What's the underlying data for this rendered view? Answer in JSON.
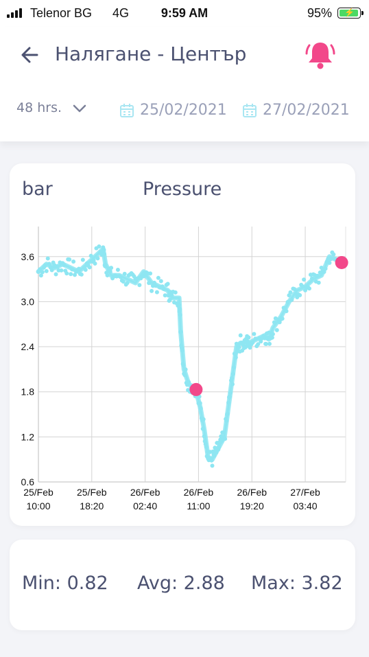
{
  "status": {
    "carrier": "Telenor BG",
    "network": "4G",
    "time": "9:59 AM",
    "battery": "95%"
  },
  "header": {
    "title": "Налягане - Център",
    "range_label": "48 hrs.",
    "date_from": "25/02/2021",
    "date_to": "27/02/2021"
  },
  "chart_data": {
    "type": "line",
    "ylabel": "bar",
    "title": "Pressure",
    "yticks": [
      "3.6",
      "3.0",
      "2.4",
      "1.8",
      "1.2",
      "0.6"
    ],
    "ylim": [
      0.6,
      4.0
    ],
    "xticks": [
      {
        "line1": "25/Feb",
        "line2": "10:00"
      },
      {
        "line1": "25/Feb",
        "line2": "18:20"
      },
      {
        "line1": "26/Feb",
        "line2": "02:40"
      },
      {
        "line1": "26/Feb",
        "line2": "11:00"
      },
      {
        "line1": "26/Feb",
        "line2": "19:20"
      },
      {
        "line1": "27/Feb",
        "line2": "03:40"
      }
    ],
    "series": [
      {
        "values": [
          [
            0,
            3.4
          ],
          [
            1,
            3.5
          ],
          [
            2,
            3.45
          ],
          [
            3,
            3.5
          ],
          [
            4,
            3.45
          ],
          [
            5,
            3.4
          ],
          [
            6,
            3.5
          ],
          [
            7,
            3.6
          ],
          [
            8,
            3.7
          ],
          [
            8.3,
            3.5
          ],
          [
            9,
            3.35
          ],
          [
            10,
            3.35
          ],
          [
            11,
            3.3
          ],
          [
            12,
            3.25
          ],
          [
            13,
            3.4
          ],
          [
            14,
            3.25
          ],
          [
            15,
            3.2
          ],
          [
            16,
            3.15
          ],
          [
            16.5,
            3.05
          ],
          [
            17.4,
            3.05
          ],
          [
            17.6,
            2.6
          ],
          [
            18,
            2.1
          ],
          [
            18.6,
            1.9
          ],
          [
            19.4,
            1.85
          ],
          [
            20,
            1.6
          ],
          [
            20.5,
            1.3
          ],
          [
            21,
            0.92
          ],
          [
            21.5,
            0.9
          ],
          [
            22,
            1.0
          ],
          [
            22.5,
            1.1
          ],
          [
            23,
            1.2
          ],
          [
            23.5,
            1.6
          ],
          [
            24,
            2.0
          ],
          [
            24.5,
            2.4
          ],
          [
            25,
            2.45
          ],
          [
            25.6,
            2.45
          ],
          [
            26,
            2.45
          ],
          [
            27,
            2.5
          ],
          [
            28,
            2.55
          ],
          [
            28.5,
            2.5
          ],
          [
            29,
            2.65
          ],
          [
            30,
            2.8
          ],
          [
            31,
            3.0
          ],
          [
            32,
            3.15
          ],
          [
            33,
            3.2
          ],
          [
            34,
            3.3
          ],
          [
            35,
            3.35
          ],
          [
            36,
            3.6
          ],
          [
            37,
            3.55
          ]
        ],
        "color": "#8ee6f2"
      }
    ],
    "markers": [
      {
        "x": 19.5,
        "y": 1.83,
        "color": "#f2488a"
      },
      {
        "x": 37.5,
        "y": 3.52,
        "color": "#f2488a"
      }
    ],
    "grid": true
  },
  "stats": {
    "min": "Min: 0.82",
    "avg": "Avg: 2.88",
    "max": "Max: 3.82"
  },
  "colors": {
    "accent": "#f2488a",
    "line": "#8ee6f2",
    "calendar": "#a9e6f2"
  },
  "icons": {
    "back": "arrow-left-icon",
    "bell": "bell-icon",
    "chevron": "chevron-down-icon",
    "calendar": "calendar-icon"
  }
}
